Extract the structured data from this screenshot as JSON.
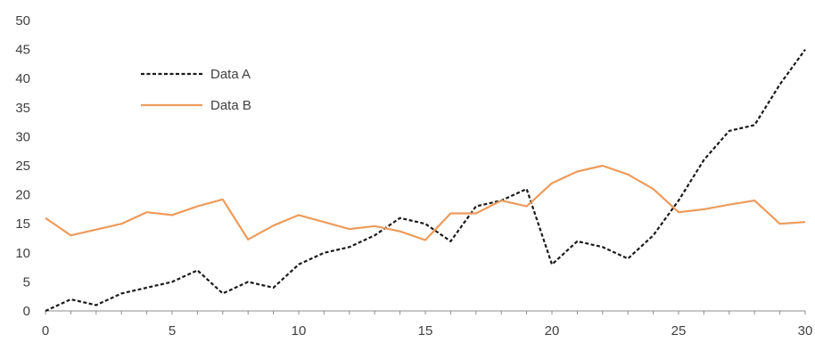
{
  "chart_data": {
    "type": "line",
    "title": "",
    "xlabel": "",
    "ylabel": "",
    "xlim": [
      0,
      30
    ],
    "ylim": [
      0,
      50
    ],
    "x_ticks": [
      0,
      5,
      10,
      15,
      20,
      25,
      30
    ],
    "y_ticks": [
      0,
      5,
      10,
      15,
      20,
      25,
      30,
      35,
      40,
      45,
      50
    ],
    "grid": false,
    "legend_position": "top-left",
    "x": [
      0,
      1,
      2,
      3,
      4,
      5,
      6,
      7,
      8,
      9,
      10,
      11,
      12,
      13,
      14,
      15,
      16,
      17,
      18,
      19,
      20,
      21,
      22,
      23,
      24,
      25,
      26,
      27,
      28,
      29,
      30
    ],
    "series": [
      {
        "name": "Data A",
        "style": "dashed",
        "color": "#1a1a1a",
        "values": [
          0,
          2,
          1,
          3,
          4,
          5,
          7,
          3,
          5,
          4,
          8,
          10,
          11,
          13,
          16,
          15,
          12,
          18,
          19,
          21,
          8,
          12,
          11,
          9,
          13,
          19,
          26,
          31,
          32,
          39,
          45
        ]
      },
      {
        "name": "Data B",
        "style": "solid",
        "color": "#ED9B5C",
        "values": [
          16,
          13,
          14,
          15,
          17,
          16.5,
          18,
          19.2,
          12.3,
          14.7,
          16.5,
          15.3,
          14.1,
          14.6,
          13.7,
          12.2,
          16.8,
          16.8,
          19,
          18,
          22,
          24,
          25,
          23.5,
          21,
          17,
          17.5,
          18.3,
          19,
          15,
          15.3
        ]
      }
    ]
  }
}
